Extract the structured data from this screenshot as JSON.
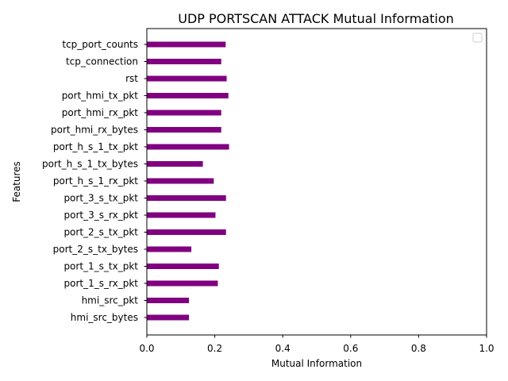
{
  "chart_data": {
    "type": "bar",
    "orientation": "horizontal",
    "title": "UDP PORTSCAN ATTACK Mutual Information",
    "xlabel": "Mutual Information",
    "ylabel": "Features",
    "xlim": [
      0,
      1
    ],
    "x_ticks": [
      "0.0",
      "0.2",
      "0.4",
      "0.6",
      "0.8",
      "1.0"
    ],
    "categories": [
      "hmi_src_bytes",
      "hmi_src_pkt",
      "port_1_s_rx_pkt",
      "port_1_s_tx_pkt",
      "port_2_s_tx_bytes",
      "port_2_s_tx_pkt",
      "port_3_s_rx_pkt",
      "port_3_s_tx_pkt",
      "port_h_s_1_rx_pkt",
      "port_h_s_1_tx_bytes",
      "port_h_s_1_tx_pkt",
      "port_hmi_rx_bytes",
      "port_hmi_rx_pkt",
      "port_hmi_tx_pkt",
      "rst",
      "tcp_connection",
      "tcp_port_counts"
    ],
    "values": [
      0.124,
      0.124,
      0.209,
      0.212,
      0.131,
      0.233,
      0.202,
      0.233,
      0.197,
      0.165,
      0.242,
      0.219,
      0.219,
      0.24,
      0.235,
      0.219,
      0.232
    ],
    "bar_color": "#800080",
    "grid": false,
    "legend": "top-right, empty"
  }
}
